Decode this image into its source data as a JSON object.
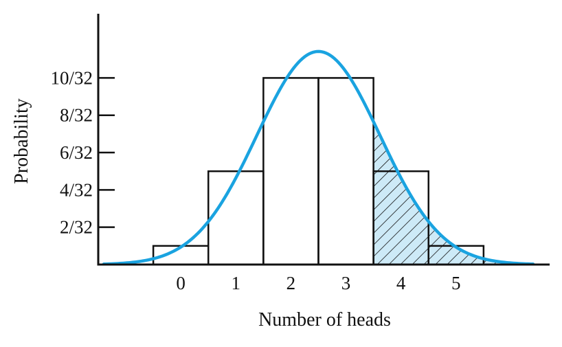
{
  "chart_data": {
    "type": "bar",
    "title": "",
    "xlabel": "Number of heads",
    "ylabel": "Probability",
    "categories": [
      0,
      1,
      2,
      3,
      4,
      5
    ],
    "category_labels": [
      "0",
      "1",
      "2",
      "3",
      "4",
      "5"
    ],
    "series": [
      {
        "values": [
          0.03125,
          0.15625,
          0.3125,
          0.3125,
          0.15625,
          0.03125
        ]
      }
    ],
    "y_ticks": [
      0.0625,
      0.125,
      0.1875,
      0.25,
      0.3125
    ],
    "y_tick_labels": [
      "2/32",
      "4/32",
      "6/32",
      "8/32",
      "10/32"
    ],
    "xlim": [
      -1.5,
      6.7
    ],
    "ylim": [
      0,
      0.42
    ],
    "overlay_curve": {
      "type": "normal",
      "mean": 2.5,
      "sd": 1.118,
      "x_range": [
        -1.4,
        6.4
      ]
    },
    "shaded_region": {
      "x_from": 3.5,
      "pattern": "diagonal-hatch",
      "fill": "#cdeaf7"
    },
    "grid": false,
    "colors": {
      "curve": "#1aa3e0",
      "shade": "#cdeaf7",
      "bars": "#111111",
      "axis": "#111111"
    }
  }
}
